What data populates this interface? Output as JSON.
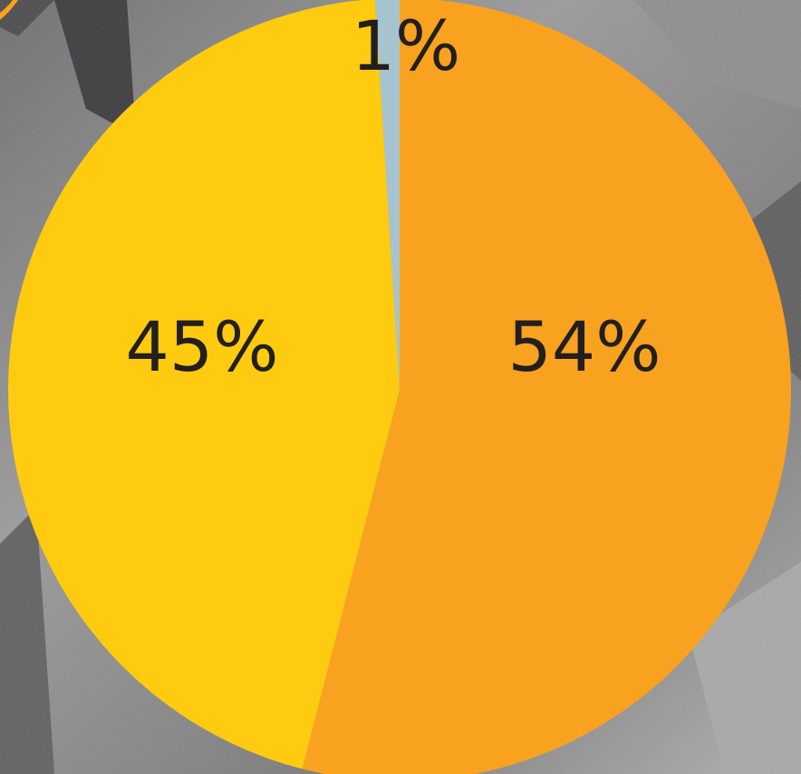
{
  "chart_data": {
    "type": "pie",
    "start_angle_deg": 0,
    "direction": "clockwise",
    "slices": [
      {
        "label": "54%",
        "value": 54,
        "color": "#f8a220"
      },
      {
        "label": "45%",
        "value": 45,
        "color": "#fecb10"
      },
      {
        "label": "1%",
        "value": 1,
        "color": "#a6c4d0"
      }
    ],
    "title": "",
    "legend": "none"
  },
  "background": {
    "description_icon": "grayscale-textured-photo"
  }
}
